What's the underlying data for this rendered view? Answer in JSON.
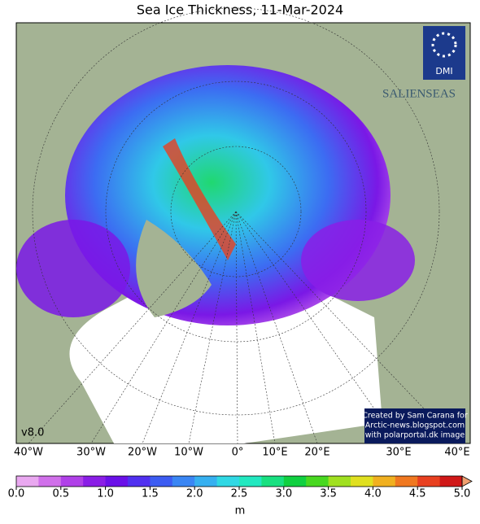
{
  "title": "Sea Ice Thickness, 11-Mar-2024",
  "map": {
    "version": "v8.0",
    "logo": "DMI",
    "brand": "SALIENSEAS",
    "credit": [
      "Created by Sam Carana for",
      "Arctic-news.blogspot.com",
      "with polarportal.dk image"
    ],
    "lon_labels": [
      "40°W",
      "30°W",
      "20°W",
      "10°W",
      "0°",
      "10°E",
      "20°E",
      "30°E",
      "40°E"
    ]
  },
  "colorbar": {
    "lim": [
      0,
      5
    ],
    "ticks": [
      {
        "value": 0,
        "label": "0.0"
      },
      0.5,
      {
        "value": 1,
        "label": "1.0"
      },
      1.5,
      {
        "value": 2,
        "label": "2.0"
      },
      2.5,
      {
        "value": 3,
        "label": "3.0"
      },
      3.5,
      {
        "value": 4,
        "label": "4.0"
      },
      4.5,
      {
        "value": 5,
        "label": "5.0"
      }
    ],
    "unit": "m",
    "colors": [
      "#e9a8f0",
      "#d070ea",
      "#b040e8",
      "#8a1ee6",
      "#6a10e8",
      "#5030f0",
      "#3c5cf2",
      "#3a86f4",
      "#36b0f0",
      "#30d8e4",
      "#22e8c0",
      "#18e080",
      "#10d040",
      "#48d820",
      "#a0e020",
      "#e0e020",
      "#f0b020",
      "#f07820",
      "#e84020",
      "#d01818"
    ]
  }
}
